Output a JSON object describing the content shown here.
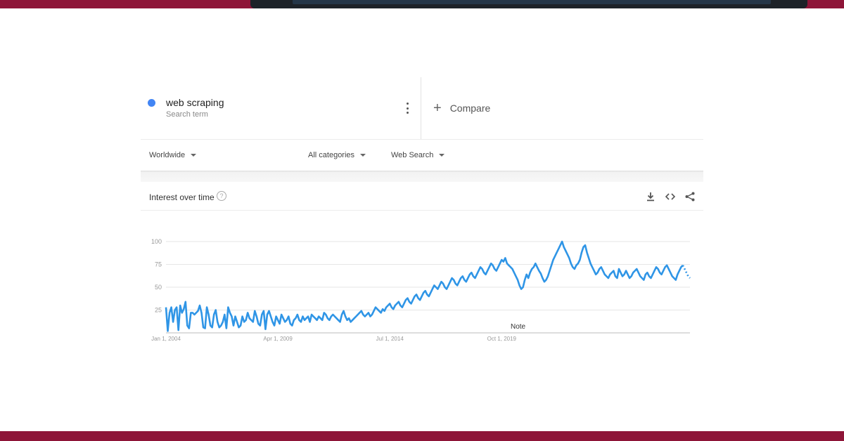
{
  "search_term": {
    "name": "web scraping",
    "subtitle": "Search term",
    "dot_color": "#4285f4"
  },
  "compare": {
    "plus": "+",
    "label": "Compare"
  },
  "filters": {
    "region": "Worldwide",
    "category": "All categories",
    "search_type": "Web Search"
  },
  "interest_over_time": {
    "title": "Interest over time",
    "help": "?",
    "icons": [
      "download-icon",
      "embed-icon",
      "share-icon"
    ],
    "note": "Note"
  },
  "colors": {
    "line": "#2f95e6",
    "brand_band": "#8e1538"
  },
  "chart_data": {
    "type": "line",
    "title": "",
    "xlabel": "",
    "ylabel": "",
    "ylim": [
      0,
      100
    ],
    "yticks": [
      25,
      50,
      75,
      100
    ],
    "grid": true,
    "x_start": "2004-01",
    "x_step": "month",
    "xtick_labels": [
      {
        "label": "Jan 1, 2004",
        "date": "2004-01"
      },
      {
        "label": "Apr 1, 2009",
        "date": "2009-04"
      },
      {
        "label": "Jul 1, 2014",
        "date": "2014-07"
      },
      {
        "label": "Oct 1, 2019",
        "date": "2019-10"
      }
    ],
    "series": [
      {
        "values": [
          28,
          2,
          22,
          28,
          12,
          25,
          28,
          3,
          30,
          22,
          26,
          34,
          8,
          5,
          22,
          22,
          20,
          22,
          24,
          30,
          22,
          6,
          5,
          28,
          20,
          8,
          6,
          20,
          25,
          12,
          6,
          8,
          12,
          20,
          5,
          28,
          22,
          18,
          8,
          18,
          12,
          6,
          8,
          18,
          12,
          14,
          22,
          16,
          14,
          12,
          24,
          18,
          10,
          8,
          20,
          24,
          4,
          20,
          24,
          18,
          12,
          8,
          18,
          14,
          10,
          20,
          16,
          12,
          14,
          18,
          10,
          8,
          14,
          16,
          20,
          14,
          12,
          18,
          14,
          16,
          18,
          12,
          20,
          18,
          16,
          14,
          18,
          16,
          14,
          22,
          20,
          16,
          14,
          18,
          20,
          18,
          16,
          14,
          12,
          20,
          24,
          18,
          14,
          16,
          12,
          14,
          16,
          18,
          20,
          22,
          24,
          20,
          18,
          20,
          22,
          18,
          20,
          24,
          28,
          26,
          24,
          22,
          26,
          24,
          28,
          30,
          32,
          28,
          26,
          30,
          32,
          34,
          30,
          28,
          32,
          36,
          38,
          34,
          32,
          36,
          40,
          42,
          38,
          36,
          40,
          44,
          46,
          42,
          40,
          44,
          48,
          52,
          50,
          48,
          52,
          56,
          54,
          50,
          48,
          52,
          56,
          60,
          58,
          54,
          52,
          56,
          60,
          62,
          58,
          56,
          60,
          64,
          66,
          62,
          60,
          64,
          68,
          72,
          70,
          66,
          64,
          68,
          72,
          76,
          74,
          70,
          68,
          72,
          76,
          80,
          78,
          82,
          76,
          74,
          72,
          70,
          66,
          62,
          58,
          52,
          48,
          50,
          58,
          64,
          60,
          66,
          70,
          72,
          76,
          72,
          68,
          65,
          60,
          56,
          58,
          62,
          68,
          74,
          80,
          84,
          88,
          92,
          96,
          100,
          94,
          90,
          86,
          82,
          76,
          72,
          70,
          74,
          76,
          80,
          88,
          94,
          96,
          88,
          82,
          76,
          72,
          68,
          64,
          66,
          70,
          72,
          68,
          64,
          62,
          60,
          64,
          66,
          68,
          62,
          60,
          70,
          66,
          62,
          64,
          68,
          64,
          60,
          62,
          66,
          68,
          70,
          66,
          62,
          60,
          58,
          64,
          66,
          62,
          60,
          64,
          68,
          72,
          70,
          66,
          64,
          68,
          72,
          74,
          70,
          66,
          62,
          60,
          58,
          64,
          68,
          72,
          74,
          70,
          66,
          62,
          60
        ],
        "partial_last_points": 4
      }
    ]
  }
}
